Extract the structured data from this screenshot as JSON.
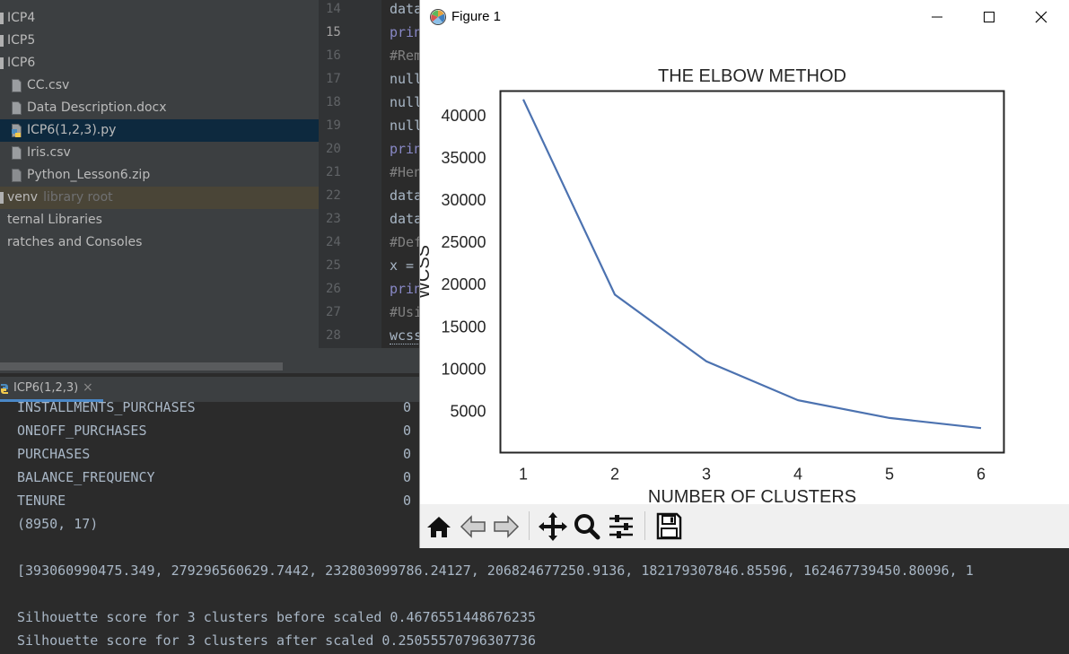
{
  "project_tree": {
    "items": [
      {
        "label": "ICP4",
        "type": "folder"
      },
      {
        "label": "ICP5",
        "type": "folder"
      },
      {
        "label": "ICP6",
        "type": "folder"
      },
      {
        "label": "CC.csv",
        "type": "file"
      },
      {
        "label": "Data Description.docx",
        "type": "file"
      },
      {
        "label": "ICP6(1,2,3).py",
        "type": "python-file",
        "selected": true
      },
      {
        "label": "Iris.csv",
        "type": "file"
      },
      {
        "label": "Python_Lesson6.zip",
        "type": "archive"
      },
      {
        "label": "venv",
        "type": "folder",
        "note": "library root"
      },
      {
        "label": "ternal Libraries",
        "type": "folder"
      },
      {
        "label": "ratches and Consoles",
        "type": "folder"
      }
    ]
  },
  "editor": {
    "current_line": "15",
    "lines": [
      {
        "number": "14",
        "text": "data",
        "kind": "id"
      },
      {
        "number": "15",
        "text": "prin",
        "kind": "kw"
      },
      {
        "number": "16",
        "text": "#Rem",
        "kind": "cm"
      },
      {
        "number": "17",
        "text": "null",
        "kind": "id"
      },
      {
        "number": "18",
        "text": "null",
        "kind": "id"
      },
      {
        "number": "19",
        "text": "null",
        "kind": "id"
      },
      {
        "number": "20",
        "text": "prin",
        "kind": "kw"
      },
      {
        "number": "21",
        "text": "#Hen",
        "kind": "cm"
      },
      {
        "number": "22",
        "text": "data",
        "kind": "id"
      },
      {
        "number": "23",
        "text": "data",
        "kind": "id"
      },
      {
        "number": "24",
        "text": "#Def",
        "kind": "cm"
      },
      {
        "number": "25",
        "text": "x =",
        "kind": "id"
      },
      {
        "number": "26",
        "text": "prin",
        "kind": "kw"
      },
      {
        "number": "27",
        "text": "#Usi",
        "kind": "cm"
      },
      {
        "number": "28",
        "text": "wcss",
        "kind": "uline"
      }
    ]
  },
  "run_panel": {
    "tab_label": "ICP6(1,2,3)",
    "close_glyph": "×",
    "console_lines": [
      {
        "label": "INSTALLMENTS_PURCHASES",
        "value": "0"
      },
      {
        "label": "ONEOFF_PURCHASES",
        "value": "0"
      },
      {
        "label": "PURCHASES",
        "value": "0"
      },
      {
        "label": "BALANCE_FREQUENCY",
        "value": "0"
      },
      {
        "label": "TENURE",
        "value": "0"
      },
      {
        "label": "(8950, 17)",
        "value": ""
      },
      {
        "label": "",
        "value": ""
      },
      {
        "label": "[393060990475.349, 279296560629.7442, 232803099786.24127, 206824677250.9136, 182179307846.85596, 162467739450.80096, 1",
        "value": ""
      },
      {
        "label": "",
        "value": ""
      },
      {
        "label": "Silhouette score for 3 clusters before scaled 0.4676551448676235",
        "value": ""
      },
      {
        "label": "Silhouette score for 3 clusters after scaled 0.25055570796307736",
        "value": ""
      }
    ]
  },
  "figure_window": {
    "title": "Figure 1",
    "controls": {
      "minimize_icon": "minimize-icon",
      "maximize_icon": "maximize-icon",
      "close_icon": "close-icon"
    },
    "toolbar": [
      "home-icon",
      "back-arrow-icon",
      "forward-arrow-icon",
      "pan-icon",
      "zoom-icon",
      "configure-subplots-icon",
      "save-icon"
    ]
  },
  "chart_data": {
    "type": "line",
    "title": "THE ELBOW METHOD",
    "xlabel": "NUMBER OF CLUSTERS",
    "ylabel": "WCSS",
    "x": [
      1,
      2,
      3,
      4,
      5,
      6
    ],
    "series": [
      {
        "values": [
          41800,
          18700,
          10800,
          6200,
          4100,
          2900
        ],
        "color": "#4c72b0"
      }
    ],
    "xlim": [
      0.75,
      6.25
    ],
    "ylim": [
      0,
      42800
    ],
    "xticks": [
      "1",
      "2",
      "3",
      "4",
      "5",
      "6"
    ],
    "yticks": [
      "5000",
      "10000",
      "15000",
      "20000",
      "25000",
      "30000",
      "35000",
      "40000"
    ],
    "grid": false,
    "legend": false
  },
  "colors": {
    "accent": "#4a88c7",
    "selected_row": "#0d293e",
    "line": "#4c72b0"
  }
}
